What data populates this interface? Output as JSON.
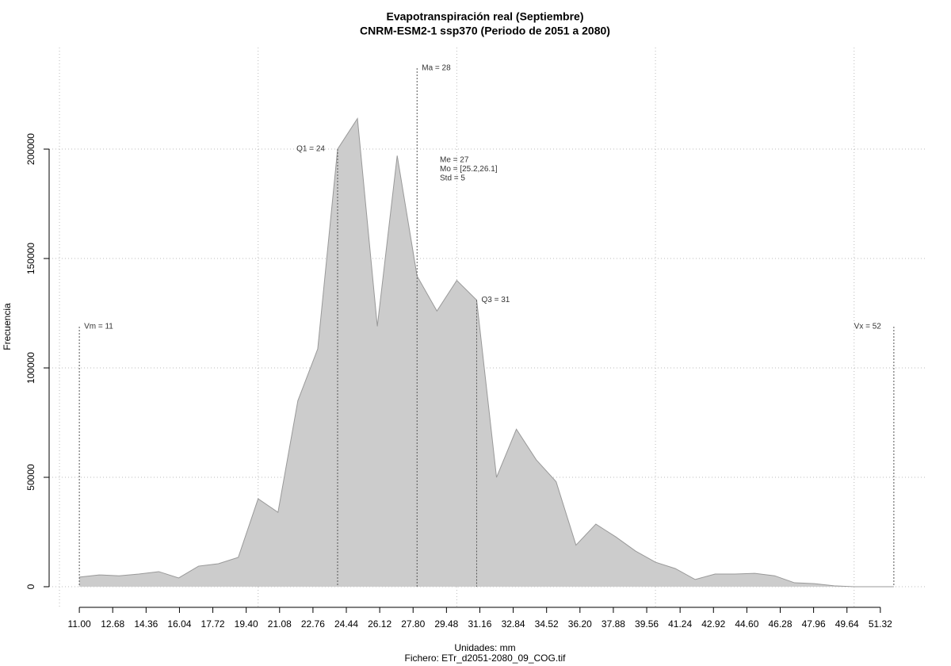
{
  "chart_data": {
    "type": "area",
    "title": "Evapotranspiración real (Septiembre)",
    "subtitle": "CNRM-ESM2-1 ssp370 (Periodo de 2051 a 2080)",
    "x_label": "Unidades: mm",
    "caption": "Fichero: ETr_d2051-2080_09_COG.tif",
    "y_label": "Frecuencia",
    "x": [
      11,
      12,
      13,
      14,
      15,
      16,
      17,
      18,
      19,
      20,
      21,
      22,
      23,
      24,
      25,
      26,
      27,
      28,
      29,
      30,
      31,
      32,
      33,
      34,
      35,
      36,
      37,
      38,
      39,
      40,
      41,
      42,
      43,
      44,
      45,
      46,
      47,
      48,
      49,
      50,
      51,
      52
    ],
    "values": [
      4400,
      5400,
      5000,
      5800,
      6900,
      4000,
      9400,
      10500,
      13400,
      40200,
      34000,
      85000,
      108700,
      200000,
      214000,
      119000,
      197000,
      142000,
      126000,
      140000,
      131000,
      50000,
      72000,
      58000,
      48000,
      19000,
      28600,
      22800,
      16300,
      11200,
      8300,
      3300,
      5800,
      5800,
      6100,
      5000,
      1800,
      1400,
      400,
      0,
      0,
      0
    ],
    "color": "#cccccc",
    "xlim": [
      9.48,
      53.68
    ],
    "ylim": [
      -9420,
      246400
    ],
    "xticks": [
      {
        "value": 11,
        "label": "11.00"
      },
      12.68,
      14.36,
      16.04,
      17.72,
      {
        "value": 19.4,
        "label": "19.40"
      },
      21.08,
      22.76,
      24.44,
      26.12,
      {
        "value": 27.8,
        "label": "27.80"
      },
      29.48,
      31.16,
      32.84,
      34.52,
      {
        "value": 36.2,
        "label": "36.20"
      },
      37.88,
      39.56,
      41.24,
      42.92,
      {
        "value": 44.6,
        "label": "44.60"
      },
      46.28,
      47.96,
      49.64,
      51.32
    ],
    "yticks": [
      0,
      50000,
      100000,
      150000,
      200000
    ],
    "xgrid": [
      10,
      20,
      30,
      40,
      50
    ],
    "grid": true,
    "annotations": [
      {
        "label": "Vm = 11",
        "value": 11
      },
      {
        "label": "Q1 = 24",
        "value": 24
      },
      {
        "label": "Ma = 28",
        "value": 28
      },
      {
        "label": "Q3 = 31",
        "value": 31
      },
      {
        "label": "Vx = 52",
        "value": 52
      }
    ],
    "stats": [
      "Me = 27",
      "Mo = [25.2,26.1]",
      "Std = 5"
    ]
  }
}
